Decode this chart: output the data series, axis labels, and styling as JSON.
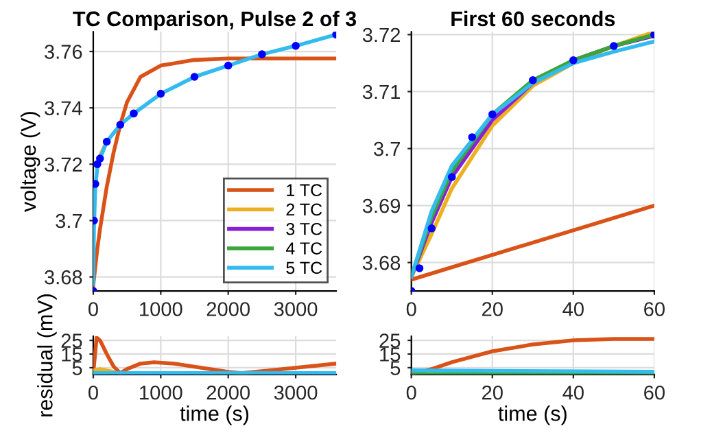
{
  "chart_data": [
    {
      "type": "line",
      "title": "TC Comparison, Pulse 2 of 3",
      "ylabel": "voltage (V)",
      "xlim": [
        0,
        3600
      ],
      "xticks": [
        0,
        1000,
        2000,
        3000
      ],
      "ylim": [
        3.675,
        3.767
      ],
      "yticks": [
        3.68,
        3.7,
        3.72,
        3.74,
        3.76
      ],
      "grid": true,
      "legend": "lower right",
      "series": [
        {
          "type": "scatter",
          "marker": "circle",
          "color": "#0000ff",
          "x": [
            0,
            10,
            30,
            60,
            100,
            200,
            400,
            600,
            1000,
            1500,
            2000,
            2500,
            3000,
            3600
          ],
          "values": [
            3.675,
            3.7,
            3.713,
            3.72,
            3.722,
            3.728,
            3.734,
            3.738,
            3.745,
            3.751,
            3.755,
            3.759,
            3.762,
            3.766
          ]
        },
        {
          "name": "1 TC",
          "color": "#d95319",
          "x": [
            0,
            60,
            100,
            200,
            300,
            400,
            500,
            700,
            1000,
            1500,
            2000,
            3600
          ],
          "values": [
            3.677,
            3.69,
            3.697,
            3.712,
            3.724,
            3.734,
            3.742,
            3.751,
            3.755,
            3.757,
            3.7575,
            3.7575
          ]
        },
        {
          "name": "2 TC",
          "color": "#edb120",
          "x": [
            60,
            100,
            200
          ],
          "values": [
            3.7205,
            3.723,
            3.728
          ]
        },
        {
          "name": "3 TC",
          "color": "#8b1fd6"
        },
        {
          "name": "4 TC",
          "color": "#3aa63a"
        },
        {
          "name": "5 TC",
          "color": "#33bbee",
          "x": [
            0,
            10,
            30,
            60,
            100,
            200,
            400,
            600,
            1000,
            1500,
            2000,
            2500,
            3000,
            3600
          ],
          "values": [
            3.6775,
            3.697,
            3.7115,
            3.7188,
            3.722,
            3.728,
            3.734,
            3.738,
            3.745,
            3.751,
            3.755,
            3.759,
            3.762,
            3.766
          ]
        }
      ]
    },
    {
      "type": "line",
      "title": "First 60 seconds",
      "xlim": [
        0,
        60
      ],
      "xticks": [
        0,
        20,
        40,
        60
      ],
      "ylim": [
        3.675,
        3.7205
      ],
      "yticks": [
        3.68,
        3.69,
        3.7,
        3.71,
        3.72
      ],
      "grid": true,
      "series": [
        {
          "type": "scatter",
          "marker": "circle",
          "color": "#0000ff",
          "x": [
            0,
            2,
            5,
            10,
            15,
            20,
            30,
            40,
            50,
            60
          ],
          "values": [
            3.675,
            3.679,
            3.686,
            3.695,
            3.702,
            3.706,
            3.712,
            3.7155,
            3.718,
            3.72
          ]
        },
        {
          "color": "#d95319",
          "x": [
            0,
            60
          ],
          "values": [
            3.677,
            3.69
          ]
        },
        {
          "color": "#edb120",
          "x": [
            0,
            5,
            10,
            20,
            30,
            40,
            50,
            60
          ],
          "values": [
            3.6775,
            3.685,
            3.693,
            3.704,
            3.711,
            3.715,
            3.718,
            3.7205
          ]
        },
        {
          "color": "#8b1fd6",
          "x": [
            0,
            5,
            10,
            20,
            30,
            40,
            50,
            60
          ],
          "values": [
            3.6775,
            3.687,
            3.695,
            3.705,
            3.7115,
            3.7155,
            3.718,
            3.7198
          ]
        },
        {
          "color": "#3aa63a",
          "x": [
            0,
            5,
            10,
            20,
            30,
            40,
            50,
            60
          ],
          "values": [
            3.6775,
            3.688,
            3.696,
            3.706,
            3.712,
            3.7155,
            3.718,
            3.72
          ]
        },
        {
          "color": "#33bbee",
          "x": [
            0,
            5,
            10,
            20,
            30,
            40,
            50,
            60
          ],
          "values": [
            3.6775,
            3.689,
            3.697,
            3.706,
            3.7115,
            3.715,
            3.717,
            3.7188
          ]
        }
      ]
    },
    {
      "type": "line",
      "xlabel": "time (s)",
      "ylabel": "residual (mV)",
      "xlim": [
        0,
        3600
      ],
      "xticks": [
        0,
        1000,
        2000,
        3000
      ],
      "ylim": [
        0,
        28
      ],
      "yticks": [
        5,
        15,
        25
      ],
      "grid": true,
      "series": [
        {
          "color": "#d95319",
          "x": [
            0,
            50,
            100,
            200,
            300,
            400,
            500,
            700,
            900,
            1200,
            1600,
            2000,
            2200,
            2600,
            3000,
            3600
          ],
          "values": [
            1,
            27,
            25,
            15,
            6,
            1,
            4,
            8,
            9,
            8,
            5,
            2,
            1,
            3,
            5,
            8
          ]
        },
        {
          "color": "#edb120",
          "x": [
            0,
            100,
            300
          ],
          "values": [
            3,
            4,
            2
          ]
        },
        {
          "color": "#33bbee",
          "x": [
            0,
            3600
          ],
          "values": [
            1,
            1
          ]
        }
      ]
    },
    {
      "type": "line",
      "xlabel": "time (s)",
      "xlim": [
        0,
        60
      ],
      "xticks": [
        0,
        20,
        40,
        60
      ],
      "ylim": [
        0,
        28
      ],
      "yticks": [
        5,
        15,
        25
      ],
      "grid": true,
      "series": [
        {
          "color": "#d95319",
          "x": [
            0,
            5,
            10,
            20,
            30,
            40,
            50,
            60
          ],
          "values": [
            1,
            4,
            9,
            17,
            22,
            25,
            26,
            26
          ]
        },
        {
          "color": "#3aa63a",
          "x": [
            0,
            60
          ],
          "values": [
            0,
            0
          ]
        },
        {
          "color": "#33bbee",
          "x": [
            0,
            60
          ],
          "values": [
            3,
            2
          ]
        }
      ]
    }
  ]
}
